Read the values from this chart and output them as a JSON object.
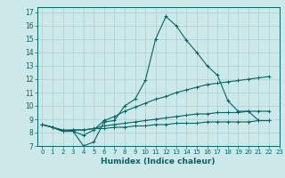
{
  "xlabel": "Humidex (Indice chaleur)",
  "xlim": [
    -0.5,
    23
  ],
  "ylim": [
    7,
    17.4
  ],
  "xticks": [
    0,
    1,
    2,
    3,
    4,
    5,
    6,
    7,
    8,
    9,
    10,
    11,
    12,
    13,
    14,
    15,
    16,
    17,
    18,
    19,
    20,
    21,
    22,
    23
  ],
  "yticks": [
    7,
    8,
    9,
    10,
    11,
    12,
    13,
    14,
    15,
    16,
    17
  ],
  "bg_color": "#cce8e8",
  "line_color": "#006666",
  "grid_color": "#aacfcf",
  "lines": [
    [
      8.6,
      8.4,
      8.1,
      8.1,
      7.0,
      7.3,
      8.8,
      8.9,
      10.0,
      10.5,
      11.9,
      15.0,
      16.7,
      16.0,
      14.9,
      14.0,
      13.0,
      12.3,
      10.4,
      9.6,
      9.6,
      8.9,
      8.9
    ],
    [
      8.6,
      8.4,
      8.1,
      8.1,
      7.8,
      8.2,
      8.9,
      9.2,
      9.6,
      9.9,
      10.2,
      10.5,
      10.7,
      11.0,
      11.2,
      11.4,
      11.6,
      11.7,
      11.8,
      11.9,
      12.0,
      12.1,
      12.2
    ],
    [
      8.6,
      8.4,
      8.1,
      8.2,
      8.2,
      8.3,
      8.5,
      8.6,
      8.7,
      8.8,
      8.9,
      9.0,
      9.1,
      9.2,
      9.3,
      9.4,
      9.4,
      9.5,
      9.5,
      9.5,
      9.6,
      9.6,
      9.6
    ],
    [
      8.6,
      8.4,
      8.2,
      8.2,
      8.2,
      8.3,
      8.3,
      8.4,
      8.4,
      8.5,
      8.5,
      8.6,
      8.6,
      8.7,
      8.7,
      8.7,
      8.8,
      8.8,
      8.8,
      8.8,
      8.8,
      8.9,
      8.9
    ]
  ],
  "x_values": [
    0,
    1,
    2,
    3,
    4,
    5,
    6,
    7,
    8,
    9,
    10,
    11,
    12,
    13,
    14,
    15,
    16,
    17,
    18,
    19,
    20,
    21,
    22
  ]
}
